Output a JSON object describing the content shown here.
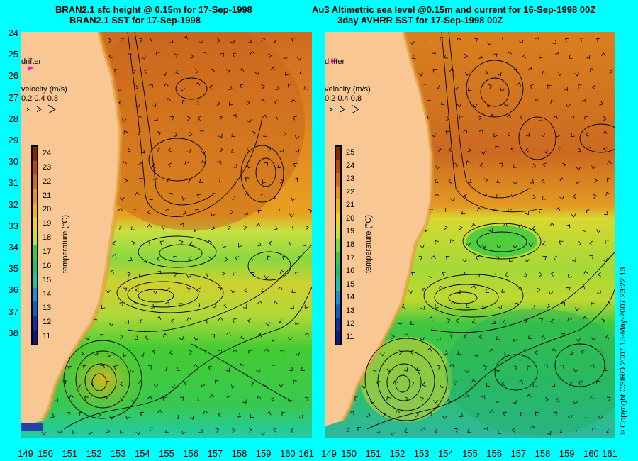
{
  "titles": {
    "left_line1": "BRAN2.1 sfc height @ 0.15m for 17-Sep-1998",
    "left_line2": "BRAN2.1 SST for 17-Sep-1998",
    "right_line1": "Au3 Altimetric sea level  @0.15m and current for 16-Sep-1998 00Z",
    "right_line2": "3day AVHRR SST for 17-Sep-1998 00Z"
  },
  "y_axis": {
    "labels": [
      "24",
      "25",
      "26",
      "27",
      "28",
      "29",
      "30",
      "31",
      "32",
      "33",
      "34",
      "35",
      "36",
      "37",
      "38"
    ]
  },
  "x_axis": {
    "labels": [
      "149",
      "150",
      "151",
      "152",
      "153",
      "154",
      "155",
      "156",
      "157",
      "158",
      "159",
      "160",
      "161"
    ]
  },
  "left_panel": {
    "drifter_label": "drifter",
    "velocity_label": "velocity (m/s)",
    "velocity_scale": "0.2 0.4 0.8",
    "colorbar_labels": [
      "24",
      "23",
      "22",
      "21",
      "20",
      "19",
      "18",
      "17",
      "16",
      "15",
      "14",
      "13",
      "12",
      "11"
    ],
    "colorbar_title": "temperature (°C)"
  },
  "right_panel": {
    "drifter_label": "drifter",
    "velocity_label": "velocity (m/s)",
    "velocity_scale": "0.2 0.4 0.8",
    "colorbar_labels": [
      "25",
      "24",
      "23",
      "22",
      "21",
      "20",
      "19",
      "18",
      "17",
      "16",
      "15",
      "14",
      "13",
      "12",
      "11"
    ],
    "colorbar_title": "temperature (°C)"
  },
  "copyright": "© Copyright CSIRO 2007   13-May-2007 23:22:13",
  "colors": {
    "background": "#00ffff",
    "land": "#f9c794",
    "drifter": "#ff00ff",
    "warm_sst": "#d2691e",
    "cool_sst": "#33cc33"
  }
}
